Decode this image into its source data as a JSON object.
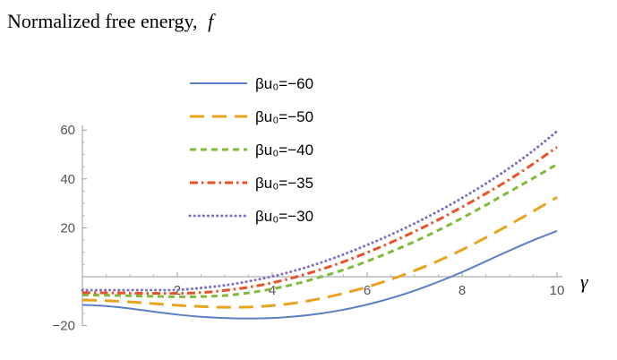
{
  "chart_data": {
    "type": "line",
    "title": "Normalized free energy,",
    "title_symbol": "f",
    "xlabel": "γ",
    "ylabel": "",
    "xlim": [
      0,
      10
    ],
    "ylim": [
      -20,
      62
    ],
    "x_ticks": [
      2,
      4,
      6,
      8,
      10
    ],
    "y_ticks": [
      -20,
      20,
      40,
      60
    ],
    "legend_position": "top-left",
    "grid": false,
    "series": [
      {
        "name": "βu₀=−60",
        "color": "#5b7fc4",
        "dash": "solid",
        "x": [
          0,
          0.5,
          1,
          1.5,
          2,
          2.5,
          3,
          3.5,
          4,
          4.5,
          5,
          5.5,
          6,
          6.5,
          7,
          7.5,
          8,
          8.5,
          9,
          9.5,
          10
        ],
        "values": [
          -11.5,
          -12,
          -13,
          -14.3,
          -15.5,
          -16.4,
          -16.9,
          -17.1,
          -16.9,
          -16.2,
          -15.1,
          -13.5,
          -11.4,
          -8.8,
          -5.7,
          -2.1,
          1.9,
          6.3,
          10.7,
          14.9,
          18.7
        ]
      },
      {
        "name": "βu₀=−50",
        "color": "#e8a31f",
        "dash": "long-dash",
        "x": [
          0,
          0.5,
          1,
          1.5,
          2,
          2.5,
          3,
          3.5,
          4,
          4.5,
          5,
          5.5,
          6,
          6.5,
          7,
          7.5,
          8,
          8.5,
          9,
          9.5,
          10
        ],
        "values": [
          -9.5,
          -9.8,
          -10.3,
          -11,
          -11.7,
          -12.2,
          -12.5,
          -12.4,
          -11.8,
          -10.7,
          -9,
          -6.8,
          -4.2,
          -1.1,
          2.5,
          6.5,
          11,
          16,
          21.3,
          26.8,
          32.5
        ]
      },
      {
        "name": "βu₀=−40",
        "color": "#7fba3a",
        "dash": "dashed",
        "x": [
          0,
          0.5,
          1,
          1.5,
          2,
          2.5,
          3,
          3.5,
          4,
          4.5,
          5,
          5.5,
          6,
          6.5,
          7,
          7.5,
          8,
          8.5,
          9,
          9.5,
          10
        ],
        "values": [
          -7.5,
          -7.6,
          -7.8,
          -8,
          -8.2,
          -8.1,
          -7.7,
          -6.6,
          -5,
          -2.9,
          -0.2,
          2.8,
          6.3,
          10.2,
          14.4,
          19,
          24,
          29.3,
          34.8,
          40.3,
          46
        ]
      },
      {
        "name": "βu₀=−35",
        "color": "#e8522a",
        "dash": "dash-dot",
        "x": [
          0,
          0.5,
          1,
          1.5,
          2,
          2.5,
          3,
          3.5,
          4,
          4.5,
          5,
          5.5,
          6,
          6.5,
          7,
          7.5,
          8,
          8.5,
          9,
          9.5,
          10
        ],
        "values": [
          -6.5,
          -6.6,
          -6.7,
          -6.8,
          -6.8,
          -6.5,
          -5.6,
          -4.3,
          -2.5,
          -0.1,
          2.8,
          6.1,
          9.9,
          14,
          18.5,
          23.3,
          28.5,
          34,
          39.8,
          46.2,
          53
        ]
      },
      {
        "name": "βu₀=−30",
        "color": "#7b6fc4",
        "dash": "dotted",
        "x": [
          0,
          0.5,
          1,
          1.5,
          2,
          2.5,
          3,
          3.5,
          4,
          4.5,
          5,
          5.5,
          6,
          6.5,
          7,
          7.5,
          8,
          8.5,
          9,
          9.5,
          10
        ],
        "values": [
          -5.5,
          -5.5,
          -5.5,
          -5.5,
          -5.4,
          -4.6,
          -3.5,
          -1.9,
          0.1,
          2.6,
          5.6,
          9.1,
          13,
          17.2,
          21.8,
          26.8,
          32.2,
          38.1,
          44.5,
          51.6,
          59.5
        ]
      }
    ]
  }
}
